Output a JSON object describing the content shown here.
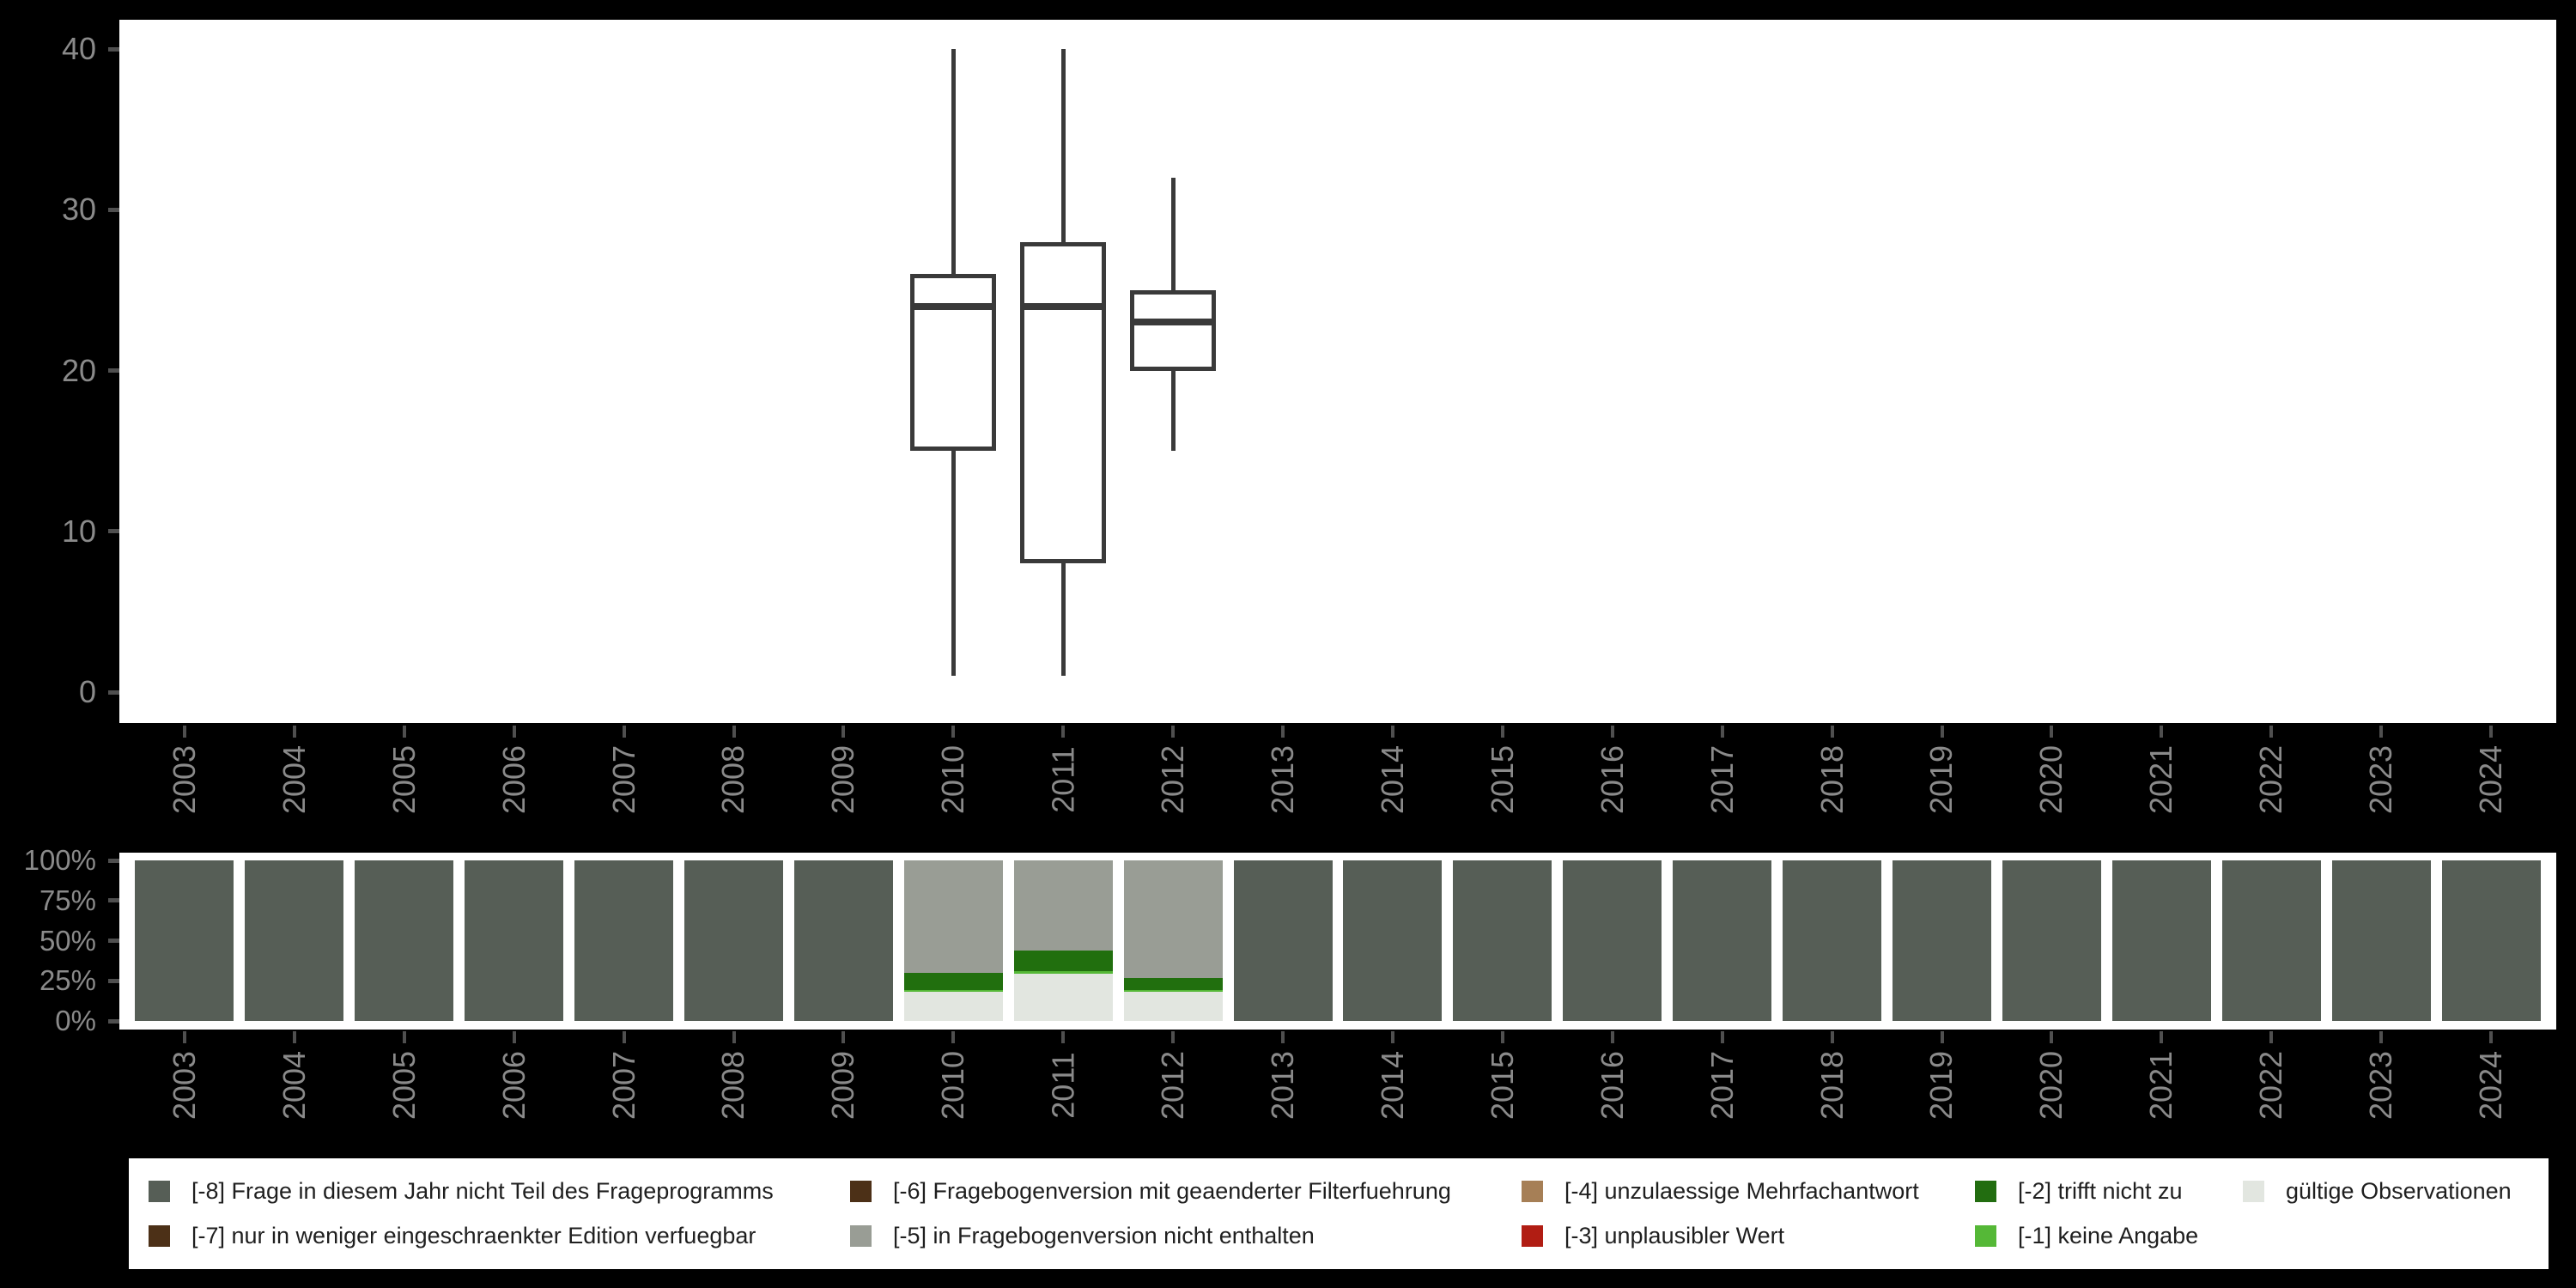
{
  "colors": {
    "page_background": "#000000",
    "panel_background": "#ffffff",
    "axis_label": "#8a8a8a",
    "axis_tick": "#4f4f4f",
    "box_stroke": "#3a3a3a",
    "legend_text": "#1f1f1f"
  },
  "axis": {
    "years": [
      "2003",
      "2004",
      "2005",
      "2006",
      "2007",
      "2008",
      "2009",
      "2010",
      "2011",
      "2012",
      "2013",
      "2014",
      "2015",
      "2016",
      "2017",
      "2018",
      "2019",
      "2020",
      "2021",
      "2022",
      "2023",
      "2024"
    ],
    "boxplot_ytick_labels": [
      "0",
      "10",
      "20",
      "30",
      "40"
    ],
    "percent_ytick_labels": [
      "0%",
      "25%",
      "50%",
      "75%",
      "100%"
    ]
  },
  "chart_data": [
    {
      "type": "boxplot",
      "title": "",
      "xlabel": "",
      "ylabel": "",
      "ylim": [
        0,
        40
      ],
      "yticks": [
        0,
        10,
        20,
        30,
        40
      ],
      "categories": [
        "2003",
        "2004",
        "2005",
        "2006",
        "2007",
        "2008",
        "2009",
        "2010",
        "2011",
        "2012",
        "2013",
        "2014",
        "2015",
        "2016",
        "2017",
        "2018",
        "2019",
        "2020",
        "2021",
        "2022",
        "2023",
        "2024"
      ],
      "boxes": [
        {
          "year": "2010",
          "min": 1,
          "q1": 15,
          "median": 24,
          "q3": 26,
          "max": 40
        },
        {
          "year": "2011",
          "min": 1,
          "q1": 8,
          "median": 24,
          "q3": 28,
          "max": 40
        },
        {
          "year": "2012",
          "min": 15,
          "q1": 20,
          "median": 23,
          "q3": 25,
          "max": 32
        }
      ]
    },
    {
      "type": "stacked_bar_percent",
      "title": "",
      "xlabel": "",
      "ylabel": "",
      "ylim_percent": [
        0,
        100
      ],
      "yticks_percent": [
        0,
        25,
        50,
        75,
        100
      ],
      "categories": [
        "2003",
        "2004",
        "2005",
        "2006",
        "2007",
        "2008",
        "2009",
        "2010",
        "2011",
        "2012",
        "2013",
        "2014",
        "2015",
        "2016",
        "2017",
        "2018",
        "2019",
        "2020",
        "2021",
        "2022",
        "2023",
        "2024"
      ],
      "default_segments": [
        {
          "name": "[-8] Frage in diesem Jahr nicht Teil des Frageprogramms",
          "color": "#565e56",
          "value": 100
        }
      ],
      "bars": {
        "2010": [
          {
            "name": "[-5] in Fragebogenversion nicht enthalten",
            "color": "#999d95",
            "value": 70
          },
          {
            "name": "[-2] trifft nicht zu",
            "color": "#216f0e",
            "value": 10.5
          },
          {
            "name": "[-1] keine Angabe",
            "color": "#55b837",
            "value": 1.5
          },
          {
            "name": "gültige Observationen",
            "color": "#e2e6e0",
            "value": 18
          }
        ],
        "2011": [
          {
            "name": "[-5] in Fragebogenversion nicht enthalten",
            "color": "#999d95",
            "value": 56
          },
          {
            "name": "[-2] trifft nicht zu",
            "color": "#216f0e",
            "value": 13
          },
          {
            "name": "[-1] keine Angabe",
            "color": "#55b837",
            "value": 1.5
          },
          {
            "name": "gültige Observationen",
            "color": "#e2e6e0",
            "value": 29.5
          }
        ],
        "2012": [
          {
            "name": "[-5] in Fragebogenversion nicht enthalten",
            "color": "#999d95",
            "value": 73.5
          },
          {
            "name": "[-2] trifft nicht zu",
            "color": "#216f0e",
            "value": 7.5
          },
          {
            "name": "[-1] keine Angabe",
            "color": "#55b837",
            "value": 1
          },
          {
            "name": "gültige Observationen",
            "color": "#e2e6e0",
            "value": 18
          }
        ]
      }
    }
  ],
  "legend": {
    "items": [
      {
        "label": "[-8] Frage in diesem Jahr nicht Teil des Frageprogramms",
        "color": "#565e56"
      },
      {
        "label": "[-7] nur in weniger eingeschraenkter Edition verfuegbar",
        "color": "#4c3017"
      },
      {
        "label": "[-6] Fragebogenversion mit geaenderter Filterfuehrung",
        "color": "#4c3017"
      },
      {
        "label": "[-5] in Fragebogenversion nicht enthalten",
        "color": "#999d95"
      },
      {
        "label": "[-4] unzulaessige Mehrfachantwort",
        "color": "#a67f56"
      },
      {
        "label": "[-3] unplausibler Wert",
        "color": "#b11d13"
      },
      {
        "label": "[-2] trifft nicht zu",
        "color": "#226d10"
      },
      {
        "label": "[-1] keine Angabe",
        "color": "#55b837"
      },
      {
        "label": "gültige Observationen",
        "color": "#e2e6e0"
      }
    ]
  }
}
